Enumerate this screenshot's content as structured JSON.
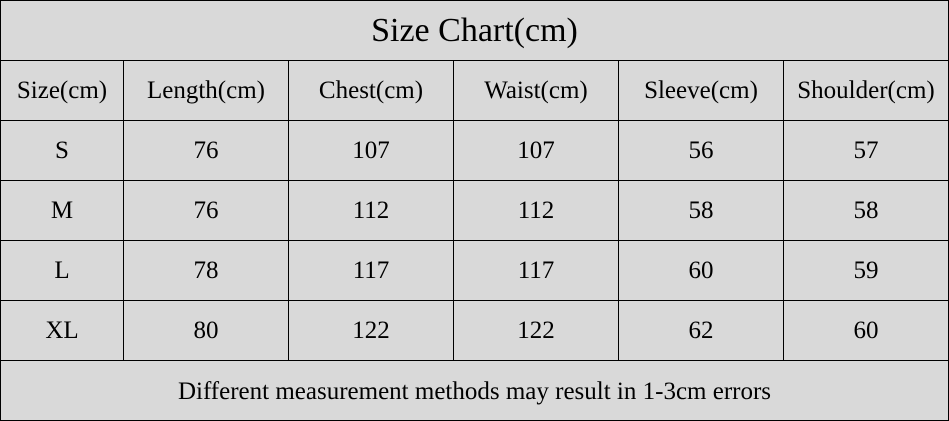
{
  "title": "Size Chart(cm)",
  "table": {
    "header": [
      "Size(cm)",
      "Length(cm)",
      "Chest(cm)",
      "Waist(cm)",
      "Sleeve(cm)",
      "Shoulder(cm)"
    ],
    "rows": [
      [
        "S",
        76,
        107,
        107,
        56,
        57
      ],
      [
        "M",
        76,
        112,
        112,
        58,
        58
      ],
      [
        "L",
        78,
        117,
        117,
        60,
        59
      ],
      [
        "XL",
        80,
        122,
        122,
        62,
        60
      ]
    ]
  },
  "footer": "Different measurement methods may result in 1-3cm errors"
}
